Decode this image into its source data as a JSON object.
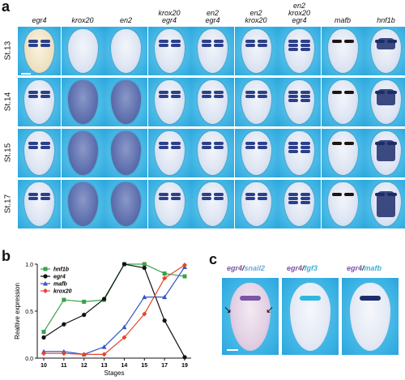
{
  "panels": {
    "a": "a",
    "b": "b",
    "c": "c"
  },
  "columns": [
    "egr4",
    "krox20",
    "en2",
    "krox20\negr4",
    "en2\negr4",
    "en2\nkrox20",
    "en2\nkrox20\negr4",
    "mafb",
    "hnf1b"
  ],
  "stages": [
    "St.13",
    "St.14",
    "St.15",
    "St.17"
  ],
  "panel_c": {
    "labels": [
      {
        "parts": [
          "egr4",
          "/",
          "snail2"
        ],
        "colors": [
          "#7a55a8",
          "#333333",
          "#6fa6d8"
        ]
      },
      {
        "parts": [
          "egr4",
          "/",
          "fgf3"
        ],
        "colors": [
          "#7a55a8",
          "#333333",
          "#3fb0d8"
        ]
      },
      {
        "parts": [
          "egr4",
          "/",
          "mafb"
        ],
        "colors": [
          "#7a55a8",
          "#333333",
          "#3fb0d8"
        ]
      }
    ]
  },
  "chart_data": {
    "type": "line",
    "xlabel": "Stages",
    "ylabel": "Realtive expression",
    "x": [
      10,
      11,
      12,
      13,
      14,
      15,
      17,
      19
    ],
    "xticks": [
      "10",
      "11",
      "12",
      "13",
      "14",
      "15",
      "17",
      "19"
    ],
    "yticks": [
      "0.0",
      "0.5",
      "1.0"
    ],
    "ylim": [
      0,
      1.0
    ],
    "series": [
      {
        "name": "hnf1b",
        "color": "#3aa04a",
        "marker": "square",
        "values": [
          0.28,
          0.62,
          0.6,
          0.62,
          1.0,
          1.0,
          0.9,
          0.87
        ]
      },
      {
        "name": "egr4",
        "color": "#111111",
        "marker": "circle",
        "values": [
          0.22,
          0.36,
          0.46,
          0.63,
          1.0,
          0.96,
          0.4,
          0.01
        ]
      },
      {
        "name": "mafb",
        "color": "#3555c8",
        "marker": "triangle",
        "values": [
          0.07,
          0.07,
          0.04,
          0.12,
          0.33,
          0.65,
          0.65,
          0.97
        ]
      },
      {
        "name": "krox20",
        "color": "#e2452a",
        "marker": "diamond",
        "values": [
          0.05,
          0.05,
          0.04,
          0.04,
          0.22,
          0.47,
          0.85,
          0.99
        ]
      }
    ],
    "legend": "top-left"
  }
}
